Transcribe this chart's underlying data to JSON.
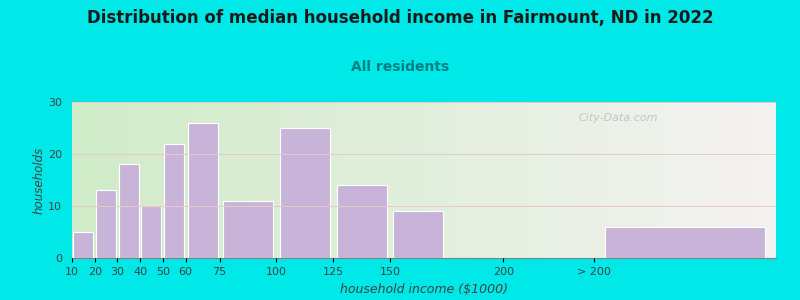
{
  "title": "Distribution of median household income in Fairmount, ND in 2022",
  "subtitle": "All residents",
  "xlabel": "household income ($1000)",
  "ylabel": "households",
  "background_outer": "#00e8e8",
  "bar_color": "#c8b4d8",
  "bar_edge_color": "#ffffff",
  "title_fontsize": 12,
  "subtitle_fontsize": 10,
  "subtitle_color": "#008080",
  "categories": [
    "10",
    "20",
    "30",
    "40",
    "50",
    "60",
    "75",
    "100",
    "125",
    "150",
    "200",
    "> 200"
  ],
  "values": [
    5,
    13,
    18,
    10,
    22,
    26,
    11,
    25,
    14,
    9,
    0,
    6
  ],
  "bar_lefts": [
    10,
    20,
    30,
    40,
    50,
    60,
    75,
    100,
    125,
    150,
    200,
    240
  ],
  "bar_widths": [
    10,
    10,
    10,
    10,
    10,
    15,
    25,
    25,
    25,
    25,
    40,
    80
  ],
  "xtick_positions": [
    10,
    20,
    30,
    40,
    50,
    60,
    75,
    100,
    125,
    150,
    200,
    240
  ],
  "xtick_labels": [
    "10",
    "20",
    "30",
    "40",
    "50",
    "60",
    "75",
    "100",
    "125",
    "150",
    "200",
    "> 200"
  ],
  "xlim": [
    10,
    320
  ],
  "ylim": [
    0,
    30
  ],
  "yticks": [
    0,
    10,
    20,
    30
  ],
  "watermark": "City-Data.com",
  "bg_left_color": "#d0ecc8",
  "bg_right_color": "#f2f0f0"
}
